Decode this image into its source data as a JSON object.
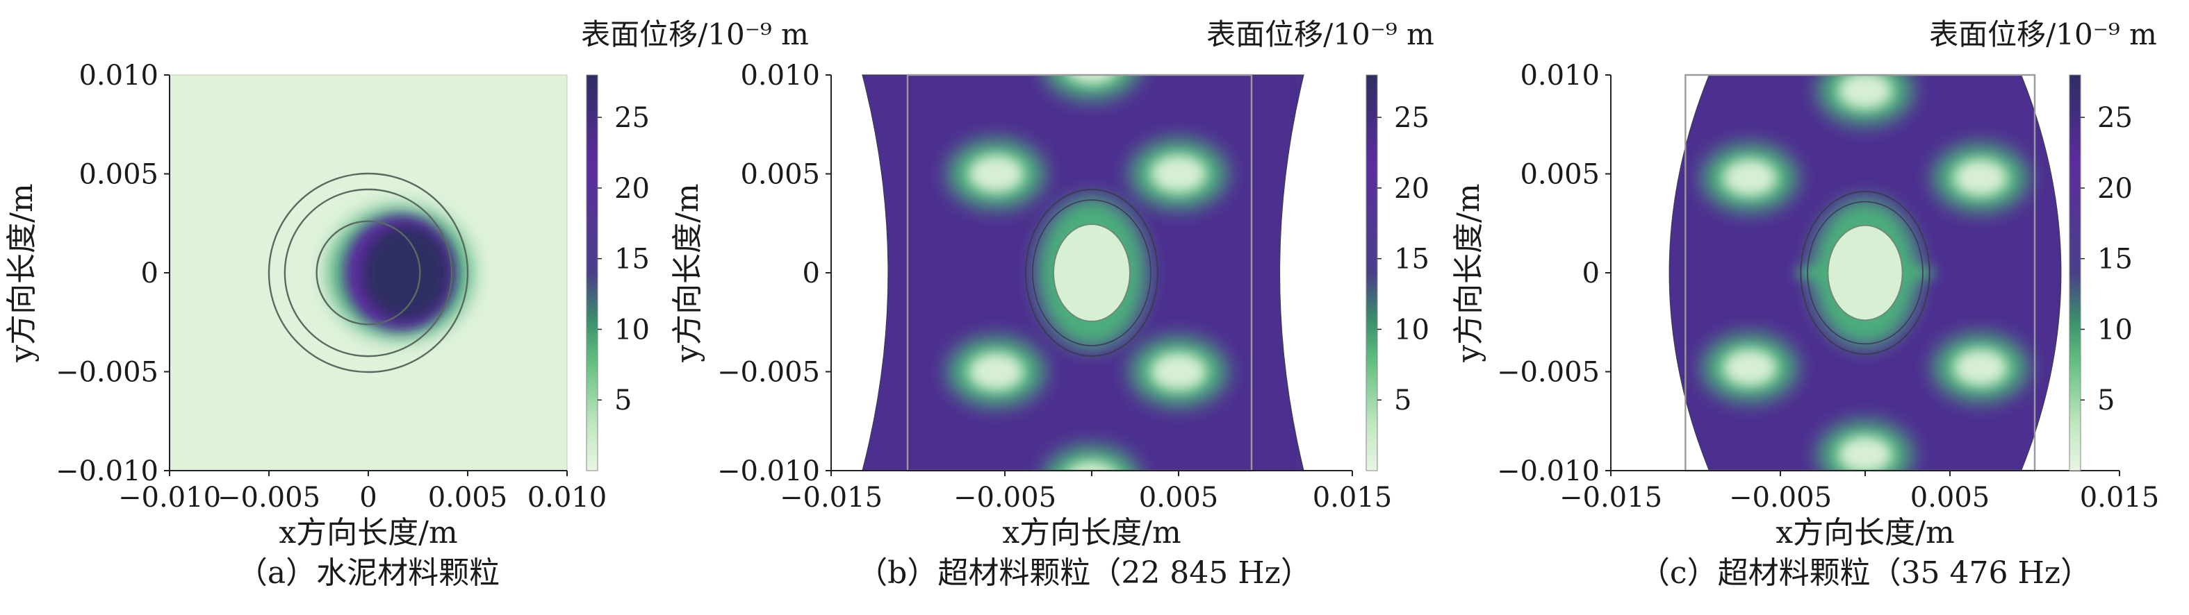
{
  "figure": {
    "background": "#ffffff"
  },
  "chart_data": [
    {
      "type": "heatmap",
      "caption": "（a）水泥材料颗粒",
      "xlabel": "x方向长度/m",
      "ylabel": "y方向长度/m",
      "colorbar_label": "表面位移/10⁻⁹ m",
      "xlim": [
        -0.01,
        0.01
      ],
      "ylim": [
        -0.01,
        0.01
      ],
      "xticks": [
        -0.01,
        -0.005,
        0,
        0.005,
        0.01
      ],
      "xtick_labels": [
        "−0.010",
        "−0.005",
        "0",
        "0.005",
        "0.010"
      ],
      "yticks": [
        0.01,
        0.005,
        0,
        -0.005,
        -0.01
      ],
      "ytick_labels": [
        "0.010",
        "0.005",
        "0",
        "−0.005",
        "−0.010"
      ],
      "colorbar_range": [
        0,
        28
      ],
      "colorbar_ticks": [
        5,
        10,
        15,
        20,
        25
      ],
      "colorbar_tick_labels": [
        "5",
        "10",
        "15",
        "20",
        "25"
      ],
      "colorscale": [
        "#e8f6e4",
        "#bfe7be",
        "#5fbe7f",
        "#3a8f6c",
        "#4b3f8a",
        "#5b2c9e",
        "#2e2e63"
      ],
      "boundary_circle_radii": [
        0.005,
        0.0042,
        0.0026
      ],
      "peak_displacement": 28
    },
    {
      "type": "heatmap",
      "caption": "（b）超材料颗粒（22 845 Hz）",
      "xlabel": "x方向长度/m",
      "ylabel": "y方向长度/m",
      "colorbar_label": "表面位移/10⁻⁹ m",
      "xlim": [
        -0.015,
        0.015
      ],
      "ylim": [
        -0.01,
        0.01
      ],
      "xticks": [
        -0.015,
        -0.005,
        0.005,
        0.015
      ],
      "xtick_labels": [
        "−0.015",
        "−0.005",
        "0.005",
        "0.015"
      ],
      "yticks": [
        0.01,
        0.005,
        0,
        -0.005,
        -0.01
      ],
      "ytick_labels": [
        "0.010",
        "0.005",
        "0",
        "−0.005",
        "−0.010"
      ],
      "colorbar_range": [
        0,
        28
      ],
      "colorbar_ticks": [
        5,
        10,
        15,
        20,
        25
      ],
      "colorbar_tick_labels": [
        "5",
        "10",
        "15",
        "20",
        "25"
      ],
      "colorscale": [
        "#e8f6e4",
        "#bfe7be",
        "#5fbe7f",
        "#3a8f6c",
        "#4b3f8a",
        "#5b2c9e",
        "#2e2e63"
      ],
      "frequency_hz": 22845
    },
    {
      "type": "heatmap",
      "caption": "（c）超材料颗粒（35 476 Hz）",
      "xlabel": "x方向长度/m",
      "ylabel": "y方向长度/m",
      "colorbar_label": "表面位移/10⁻⁹ m",
      "xlim": [
        -0.015,
        0.015
      ],
      "ylim": [
        -0.01,
        0.01
      ],
      "xticks": [
        -0.015,
        -0.005,
        0.005,
        0.015
      ],
      "xtick_labels": [
        "−0.015",
        "−0.005",
        "0.005",
        "0.015"
      ],
      "yticks": [
        0.01,
        0.005,
        0,
        -0.005,
        -0.01
      ],
      "ytick_labels": [
        "0.010",
        "0.005",
        "0",
        "−0.005",
        "−0.010"
      ],
      "colorbar_range": [
        0,
        28
      ],
      "colorbar_ticks": [
        5,
        10,
        15,
        20,
        25
      ],
      "colorbar_tick_labels": [
        "5",
        "10",
        "15",
        "20",
        "25"
      ],
      "colorscale": [
        "#e8f6e4",
        "#bfe7be",
        "#5fbe7f",
        "#3a8f6c",
        "#4b3f8a",
        "#5b2c9e",
        "#2e2e63"
      ],
      "frequency_hz": 35476
    }
  ]
}
